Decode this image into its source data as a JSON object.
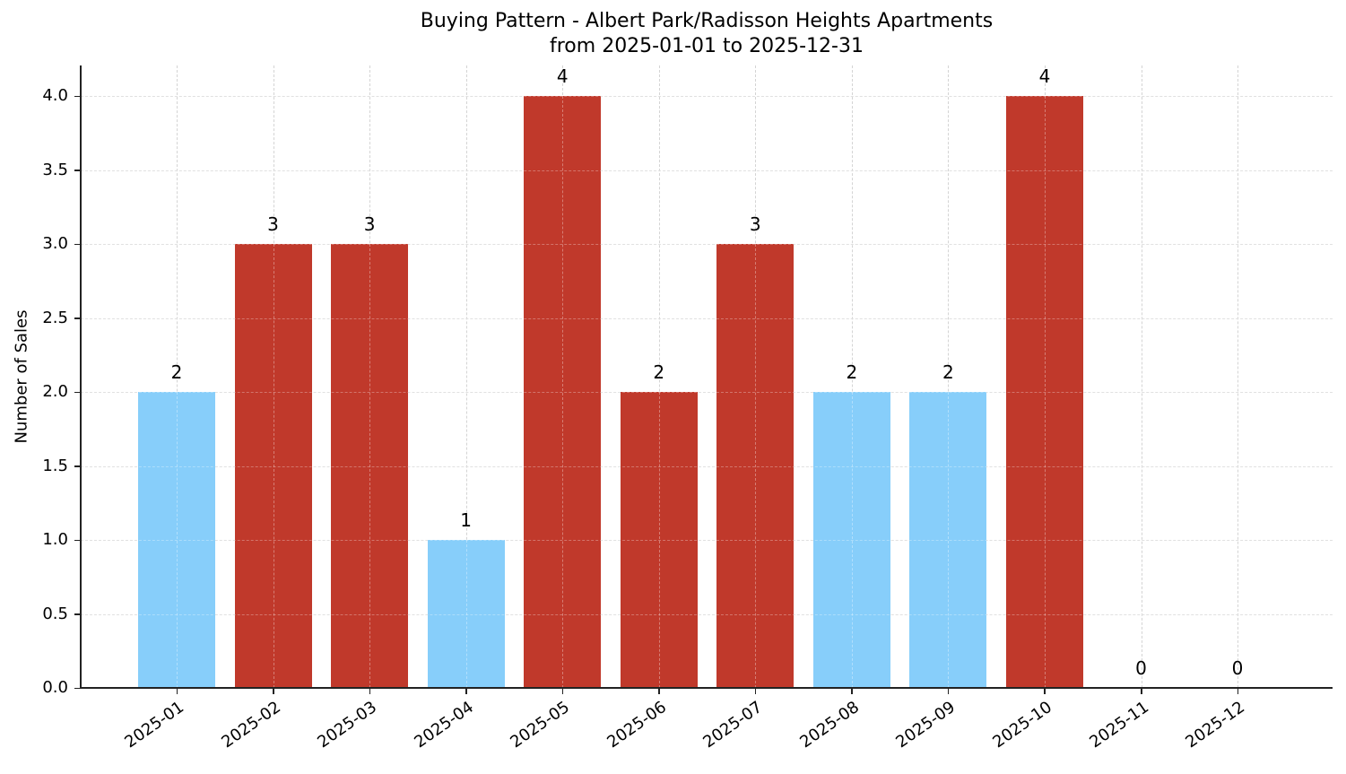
{
  "chart_data": {
    "type": "bar",
    "title": "Buying Pattern - Albert Park/Radisson Heights Apartments",
    "subtitle": "from 2025-01-01 to 2025-12-31",
    "xlabel": "",
    "ylabel": "Number of Sales",
    "categories": [
      "2025-01",
      "2025-02",
      "2025-03",
      "2025-04",
      "2025-05",
      "2025-06",
      "2025-07",
      "2025-08",
      "2025-09",
      "2025-10",
      "2025-11",
      "2025-12"
    ],
    "values": [
      2,
      3,
      3,
      1,
      4,
      2,
      3,
      2,
      2,
      4,
      0,
      0
    ],
    "value_labels": [
      "2",
      "3",
      "3",
      "1",
      "4",
      "2",
      "3",
      "2",
      "2",
      "4",
      "0",
      "0"
    ],
    "bar_colors": [
      "#87cefa",
      "#c0392b",
      "#c0392b",
      "#87cefa",
      "#c0392b",
      "#c0392b",
      "#c0392b",
      "#87cefa",
      "#87cefa",
      "#c0392b",
      "#87cefa",
      "#87cefa"
    ],
    "ylim": [
      0,
      4.2
    ],
    "yticks": [
      "0.0",
      "0.5",
      "1.0",
      "1.5",
      "2.0",
      "2.5",
      "3.0",
      "3.5",
      "4.0"
    ],
    "grid": true,
    "legend": null
  },
  "colors": {
    "high": "#c0392b",
    "low": "#87cefa",
    "axis": "#222222",
    "grid": "#d4d4d4"
  }
}
